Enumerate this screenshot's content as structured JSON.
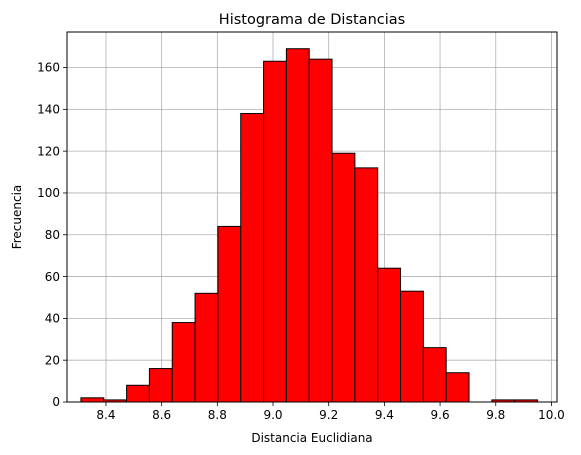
{
  "chart_data": {
    "type": "bar",
    "title": "Histograma de Distancias",
    "xlabel": "Distancia Euclidiana",
    "ylabel": "Frecuencia",
    "xlim": [
      8.26,
      10.02
    ],
    "ylim": [
      0,
      177
    ],
    "xticks": [
      8.4,
      8.6,
      8.8,
      9.0,
      9.2,
      9.4,
      9.6,
      9.8,
      10.0
    ],
    "xtick_labels": [
      "8.4",
      "8.6",
      "8.8",
      "9.0",
      "9.2",
      "9.4",
      "9.6",
      "9.8",
      "10.0"
    ],
    "yticks": [
      0,
      20,
      40,
      60,
      80,
      100,
      120,
      140,
      160
    ],
    "ytick_labels": [
      "0",
      "20",
      "40",
      "60",
      "80",
      "100",
      "120",
      "140",
      "160"
    ],
    "grid": true,
    "bar_color": "#ff0000",
    "edge_color": "#000000",
    "bins": [
      {
        "x0": 8.31,
        "x1": 8.392,
        "value": 2
      },
      {
        "x0": 8.392,
        "x1": 8.474,
        "value": 1
      },
      {
        "x0": 8.474,
        "x1": 8.556,
        "value": 8
      },
      {
        "x0": 8.556,
        "x1": 8.638,
        "value": 16
      },
      {
        "x0": 8.638,
        "x1": 8.72,
        "value": 38
      },
      {
        "x0": 8.72,
        "x1": 8.802,
        "value": 52
      },
      {
        "x0": 8.802,
        "x1": 8.884,
        "value": 84
      },
      {
        "x0": 8.884,
        "x1": 8.966,
        "value": 138
      },
      {
        "x0": 8.966,
        "x1": 9.048,
        "value": 163
      },
      {
        "x0": 9.048,
        "x1": 9.13,
        "value": 169
      },
      {
        "x0": 9.13,
        "x1": 9.212,
        "value": 164
      },
      {
        "x0": 9.212,
        "x1": 9.294,
        "value": 119
      },
      {
        "x0": 9.294,
        "x1": 9.376,
        "value": 112
      },
      {
        "x0": 9.376,
        "x1": 9.458,
        "value": 64
      },
      {
        "x0": 9.458,
        "x1": 9.54,
        "value": 53
      },
      {
        "x0": 9.54,
        "x1": 9.622,
        "value": 26
      },
      {
        "x0": 9.622,
        "x1": 9.704,
        "value": 14
      },
      {
        "x0": 9.704,
        "x1": 9.786,
        "value": 0
      },
      {
        "x0": 9.786,
        "x1": 9.868,
        "value": 1
      },
      {
        "x0": 9.868,
        "x1": 9.95,
        "value": 1
      }
    ]
  }
}
